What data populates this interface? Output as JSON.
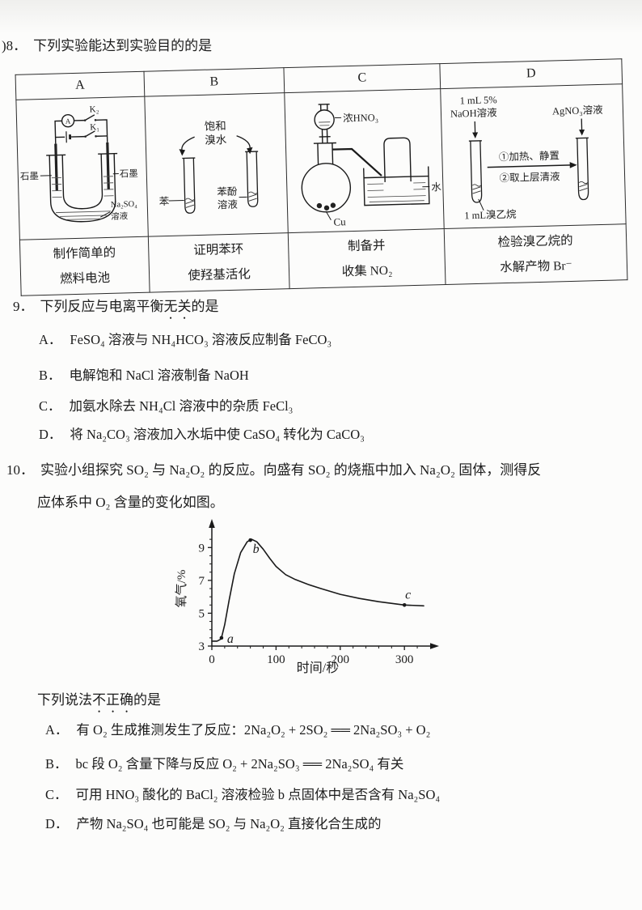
{
  "q8": {
    "number": ")8．",
    "stem": "下列实验能达到实验目的的是",
    "headers": [
      "A",
      "B",
      "C",
      "D"
    ],
    "purposes": [
      {
        "line1": "制作简单的",
        "line2": "燃料电池"
      },
      {
        "line1": "证明苯环",
        "line2": "使羟基活化"
      },
      {
        "line1": "制备并",
        "line2": "收集 NO₂"
      },
      {
        "line1": "检验溴乙烷的",
        "line2": "水解产物 Br⁻"
      }
    ],
    "apparatusA": {
      "k2_label": "K₂",
      "k1_label": "K₁",
      "ammeter_label": "A",
      "graphite_left": "石墨",
      "graphite_right": "石墨",
      "solution_name": "Na₂SO₄",
      "solution_word": "溶液"
    },
    "apparatusB": {
      "reagent_line1": "饱和",
      "reagent_line2": "溴水",
      "left_label": "苯",
      "right_label_line1": "苯酚",
      "right_label_line2": "溶液"
    },
    "apparatusC": {
      "acid_label": "浓HNO₃",
      "metal_label": "Cu",
      "water_label": "水"
    },
    "apparatusD": {
      "left_reagent_line1": "1 mL 5%",
      "left_reagent_line2": "NaOH溶液",
      "right_reagent": "AgNO₃溶液",
      "step1": "①加热、静置",
      "step2": "②取上层清液",
      "sample_label": "1 mL溴乙烷"
    }
  },
  "q9": {
    "number": "9．",
    "stem_pre": "下列反应与电离平衡",
    "stem_emph": "无关",
    "stem_post": "的是",
    "options": [
      {
        "label": "A．",
        "text": "FeSO₄ 溶液与 NH₄HCO₃ 溶液反应制备 FeCO₃"
      },
      {
        "label": "B．",
        "text": "电解饱和 NaCl 溶液制备 NaOH"
      },
      {
        "label": "C．",
        "text": "加氨水除去 NH₄Cl 溶液中的杂质 FeCl₃"
      },
      {
        "label": "D．",
        "text": "将 Na₂CO₃ 溶液加入水垢中使 CaSO₄ 转化为 CaCO₃"
      }
    ]
  },
  "q10": {
    "number": "10．",
    "stem_line1": "实验小组探究 SO₂ 与 Na₂O₂ 的反应。向盛有 SO₂ 的烧瓶中加入 Na₂O₂ 固体，测得反",
    "stem_line2": "应体系中 O₂ 含量的变化如图。",
    "substem_pre": "下列说法",
    "substem_emph": "不正确",
    "substem_post": "的是",
    "options": [
      {
        "label": "A．",
        "text": "有 O₂ 生成推测发生了反应：2Na₂O₂ + 2SO₂ ══ 2Na₂SO₃ + O₂"
      },
      {
        "label": "B．",
        "text": "bc 段 O₂ 含量下降与反应 O₂ + 2Na₂SO₃ ══ 2Na₂SO₄ 有关"
      },
      {
        "label": "C．",
        "text": "可用 HNO₃ 酸化的 BaCl₂ 溶液检验 b 点固体中是否含有 Na₂SO₄"
      },
      {
        "label": "D．",
        "text": "产物 Na₂SO₄ 也可能是 SO₂ 与 Na₂O₂ 直接化合生成的"
      }
    ]
  },
  "chart_data": {
    "type": "line",
    "title": "",
    "xlabel": "时间/秒",
    "ylabel": "氧气/%",
    "xlim": [
      0,
      330
    ],
    "ylim": [
      3,
      10
    ],
    "xticks": [
      0,
      100,
      200,
      300
    ],
    "xticks_minor": [
      20,
      40,
      60,
      80,
      120,
      140,
      160,
      180,
      220,
      240,
      260,
      280,
      320
    ],
    "yticks": [
      3,
      5,
      7,
      9
    ],
    "yticks_minor": [
      3.5,
      4,
      4.5,
      5.5,
      6,
      6.5,
      7.5,
      8,
      8.5,
      9.5
    ],
    "grid": false,
    "legend": null,
    "points": [
      [
        0,
        3.3
      ],
      [
        8,
        3.3
      ],
      [
        13,
        3.4
      ],
      [
        15,
        3.5
      ],
      [
        20,
        4.3
      ],
      [
        27,
        5.8
      ],
      [
        35,
        7.4
      ],
      [
        45,
        8.7
      ],
      [
        55,
        9.35
      ],
      [
        62,
        9.5
      ],
      [
        70,
        9.35
      ],
      [
        80,
        8.9
      ],
      [
        90,
        8.35
      ],
      [
        100,
        7.85
      ],
      [
        115,
        7.35
      ],
      [
        130,
        7.05
      ],
      [
        150,
        6.75
      ],
      [
        170,
        6.5
      ],
      [
        200,
        6.15
      ],
      [
        230,
        5.9
      ],
      [
        260,
        5.7
      ],
      [
        300,
        5.5
      ],
      [
        330,
        5.45
      ]
    ],
    "annotations": [
      {
        "label": "a",
        "x": 15,
        "y": 3.5
      },
      {
        "label": "b",
        "x": 60,
        "y": 9.45
      },
      {
        "label": "c",
        "x": 300,
        "y": 5.5
      }
    ]
  }
}
